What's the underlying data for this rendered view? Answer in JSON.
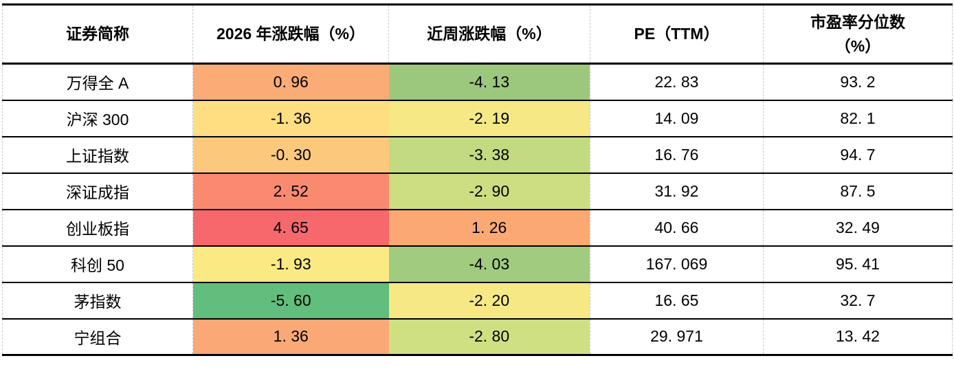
{
  "table": {
    "headers": {
      "name": "证券简称",
      "yearly": "2026 年涨跌幅（%）",
      "weekly": "近周涨跌幅（%）",
      "pe": "PE（TTM）",
      "percentile_line1": "市盈率分位数",
      "percentile_line2": "（%）"
    },
    "rows": [
      {
        "name": "万得全 A",
        "yearly": "0. 96",
        "yearly_bg": "#FBAC76",
        "weekly": "-4. 13",
        "weekly_bg": "#9CC87D",
        "pe": "22. 83",
        "percentile": "93. 2"
      },
      {
        "name": "沪深 300",
        "yearly": "-1. 36",
        "yearly_bg": "#FEDE81",
        "weekly": "-2. 19",
        "weekly_bg": "#F6E884",
        "pe": "14. 09",
        "percentile": "82. 1"
      },
      {
        "name": "上证指数",
        "yearly": "-0. 30",
        "yearly_bg": "#FCC97C",
        "weekly": "-3. 38",
        "weekly_bg": "#C2DA80",
        "pe": "16. 76",
        "percentile": "94. 7"
      },
      {
        "name": "深证成指",
        "yearly": "2. 52",
        "yearly_bg": "#F98A70",
        "weekly": "-2. 90",
        "weekly_bg": "#CDDE82",
        "pe": "31. 92",
        "percentile": "87. 5"
      },
      {
        "name": "创业板指",
        "yearly": "4. 65",
        "yearly_bg": "#F7686C",
        "weekly": "1. 26",
        "weekly_bg": "#FBA873",
        "pe": "40. 66",
        "percentile": "32. 49"
      },
      {
        "name": "科创 50",
        "yearly": "-1. 93",
        "yearly_bg": "#FBE983",
        "weekly": "-4. 03",
        "weekly_bg": "#A1CB7E",
        "pe": "167. 069",
        "percentile": "95. 41"
      },
      {
        "name": "茅指数",
        "yearly": "-5. 60",
        "yearly_bg": "#61BE7C",
        "weekly": "-2. 20",
        "weekly_bg": "#F6E884",
        "pe": "16. 65",
        "percentile": "32. 7"
      },
      {
        "name": "宁组合",
        "yearly": "1. 36",
        "yearly_bg": "#FBA877",
        "weekly": "-2. 80",
        "weekly_bg": "#CFE083",
        "pe": "29. 971",
        "percentile": "13. 42"
      }
    ],
    "style": {
      "row_border_color": "#000000",
      "grid_dash_color": "#C6C6C6",
      "heat_scale_low_color": "#63BE7B",
      "heat_scale_mid_color": "#FFEB84",
      "heat_scale_high_color": "#F8696B"
    }
  },
  "chart_data": {
    "type": "table",
    "title": "",
    "columns": [
      "证券简称",
      "2026年涨跌幅（%）",
      "近周涨跌幅（%）",
      "PE（TTM）",
      "市盈率分位数（%）"
    ],
    "rows": [
      [
        "万得全A",
        0.96,
        -4.13,
        22.83,
        93.2
      ],
      [
        "沪深300",
        -1.36,
        -2.19,
        14.09,
        82.1
      ],
      [
        "上证指数",
        -0.3,
        -3.38,
        16.76,
        94.7
      ],
      [
        "深证成指",
        2.52,
        -2.9,
        31.92,
        87.5
      ],
      [
        "创业板指",
        4.65,
        1.26,
        40.66,
        32.49
      ],
      [
        "科创50",
        -1.93,
        -4.03,
        167.069,
        95.41
      ],
      [
        "茅指数",
        -5.6,
        -2.2,
        16.65,
        32.7
      ],
      [
        "宁组合",
        1.36,
        -2.8,
        29.971,
        13.42
      ]
    ],
    "notes": "涨跌幅两列带红-黄-绿色阶条件格式（值越高越红，越低越绿）"
  }
}
